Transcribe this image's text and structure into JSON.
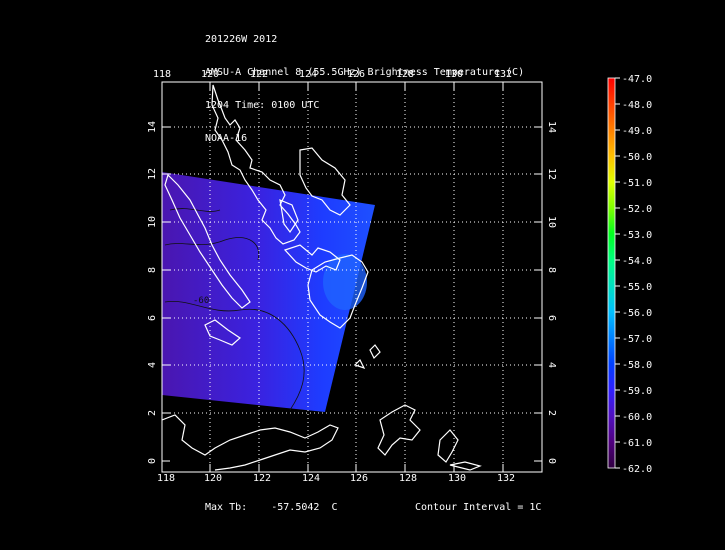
{
  "header": {
    "line1": "201226W 2012",
    "line2": "AMSU-A Channel 8 (55.5GHz) Brightness Temperature (C)",
    "line3": "1204 Time: 0100 UTC",
    "line4": "NOAA-16"
  },
  "map": {
    "lon_ticks": [
      "118",
      "120",
      "122",
      "124",
      "126",
      "128",
      "130",
      "132"
    ],
    "lat_ticks": [
      "0",
      "2",
      "4",
      "6",
      "8",
      "10",
      "12",
      "14"
    ],
    "contour_label": "-60"
  },
  "colorbar": {
    "labels": [
      "-47.0",
      "-48.0",
      "-49.0",
      "-50.0",
      "-51.0",
      "-52.0",
      "-53.0",
      "-54.0",
      "-55.0",
      "-56.0",
      "-57.0",
      "-58.0",
      "-59.0",
      "-60.0",
      "-61.0",
      "-62.0"
    ],
    "colors": [
      "#ff0000",
      "#ff4000",
      "#ff8000",
      "#ffbf00",
      "#e0ff00",
      "#80ff00",
      "#00ff20",
      "#00ff80",
      "#00e0c0",
      "#00c0ff",
      "#0080ff",
      "#0040ff",
      "#3020ff",
      "#5010c0",
      "#500080",
      "#300040"
    ]
  },
  "footer": {
    "max_tb_label": "Max Tb:",
    "max_tb_value": "-57.5042",
    "max_tb_unit": "C",
    "contour_interval": "Contour Interval = 1C"
  }
}
